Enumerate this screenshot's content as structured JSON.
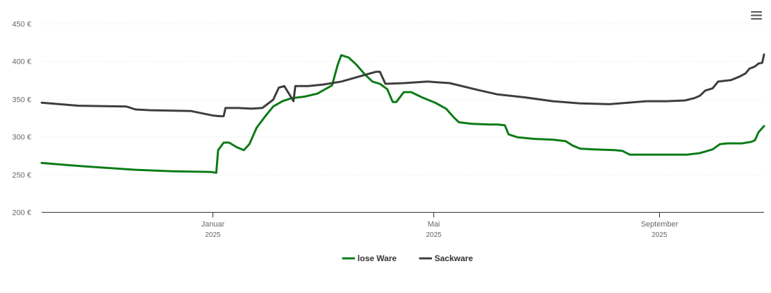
{
  "chart_data": {
    "type": "line",
    "title": "",
    "xlabel": "",
    "ylabel": "",
    "y_tick_labels": [
      "200 €",
      "250 €",
      "300 €",
      "350 €",
      "400 €",
      "450 €"
    ],
    "y_ticks": [
      200,
      250,
      300,
      350,
      400,
      450
    ],
    "ylim": [
      200,
      450
    ],
    "x_range": [
      "2024-09-30",
      "2025-10-28"
    ],
    "x_ticks": [
      {
        "date": "2025-01-01",
        "label": "Januar",
        "year": "2025"
      },
      {
        "date": "2025-05-01",
        "label": "Mai",
        "year": "2025"
      },
      {
        "date": "2025-09-01",
        "label": "September",
        "year": "2025"
      }
    ],
    "grid": true,
    "legend_position": "bottom-center",
    "series": [
      {
        "name": "lose Ware",
        "color": "#0a7b16",
        "points": [
          [
            "2024-09-30",
            265
          ],
          [
            "2024-10-15",
            262
          ],
          [
            "2024-11-01",
            259
          ],
          [
            "2024-11-20",
            256
          ],
          [
            "2024-12-10",
            254
          ],
          [
            "2024-12-31",
            253
          ],
          [
            "2025-01-03",
            252
          ],
          [
            "2025-01-04",
            282
          ],
          [
            "2025-01-07",
            292
          ],
          [
            "2025-01-10",
            292
          ],
          [
            "2025-01-14",
            286
          ],
          [
            "2025-01-18",
            282
          ],
          [
            "2025-01-21",
            290
          ],
          [
            "2025-01-25",
            312
          ],
          [
            "2025-01-30",
            328
          ],
          [
            "2025-02-03",
            340
          ],
          [
            "2025-02-08",
            347
          ],
          [
            "2025-02-13",
            351
          ],
          [
            "2025-02-20",
            353
          ],
          [
            "2025-02-27",
            357
          ],
          [
            "2025-03-07",
            368
          ],
          [
            "2025-03-10",
            395
          ],
          [
            "2025-03-12",
            408
          ],
          [
            "2025-03-16",
            405
          ],
          [
            "2025-03-20",
            396
          ],
          [
            "2025-03-25",
            382
          ],
          [
            "2025-03-29",
            373
          ],
          [
            "2025-04-02",
            370
          ],
          [
            "2025-04-06",
            363
          ],
          [
            "2025-04-09",
            346
          ],
          [
            "2025-04-11",
            346
          ],
          [
            "2025-04-15",
            359
          ],
          [
            "2025-04-19",
            359
          ],
          [
            "2025-04-25",
            352
          ],
          [
            "2025-05-02",
            345
          ],
          [
            "2025-05-08",
            337
          ],
          [
            "2025-05-12",
            326
          ],
          [
            "2025-05-15",
            319
          ],
          [
            "2025-05-22",
            317
          ],
          [
            "2025-06-01",
            316
          ],
          [
            "2025-06-05",
            316
          ],
          [
            "2025-06-09",
            315
          ],
          [
            "2025-06-11",
            303
          ],
          [
            "2025-06-16",
            299
          ],
          [
            "2025-06-25",
            297
          ],
          [
            "2025-07-05",
            296
          ],
          [
            "2025-07-12",
            294
          ],
          [
            "2025-07-16",
            288
          ],
          [
            "2025-07-20",
            284
          ],
          [
            "2025-07-28",
            283
          ],
          [
            "2025-08-08",
            282
          ],
          [
            "2025-08-12",
            281
          ],
          [
            "2025-08-16",
            276
          ],
          [
            "2025-08-28",
            276
          ],
          [
            "2025-09-01",
            276
          ],
          [
            "2025-09-12",
            276
          ],
          [
            "2025-09-16",
            276
          ],
          [
            "2025-09-23",
            278
          ],
          [
            "2025-09-30",
            283
          ],
          [
            "2025-10-04",
            290
          ],
          [
            "2025-10-08",
            291
          ],
          [
            "2025-10-16",
            291
          ],
          [
            "2025-10-21",
            293
          ],
          [
            "2025-10-23",
            295
          ],
          [
            "2025-10-25",
            306
          ],
          [
            "2025-10-28",
            314
          ],
          [
            "2025-10-28",
            314
          ]
        ]
      },
      {
        "name": "Sackware",
        "color": "#3d3d3d",
        "points": [
          [
            "2024-09-30",
            345
          ],
          [
            "2024-10-20",
            341
          ],
          [
            "2024-11-15",
            340
          ],
          [
            "2024-11-20",
            336
          ],
          [
            "2024-11-28",
            335
          ],
          [
            "2024-12-20",
            334
          ],
          [
            "2025-01-01",
            328
          ],
          [
            "2025-01-05",
            327
          ],
          [
            "2025-01-07",
            327
          ],
          [
            "2025-01-08",
            338
          ],
          [
            "2025-01-15",
            338
          ],
          [
            "2025-01-22",
            337
          ],
          [
            "2025-01-28",
            338
          ],
          [
            "2025-02-03",
            349
          ],
          [
            "2025-02-06",
            365
          ],
          [
            "2025-02-09",
            367
          ],
          [
            "2025-02-12",
            355
          ],
          [
            "2025-02-14",
            347
          ],
          [
            "2025-02-15",
            367
          ],
          [
            "2025-02-22",
            367
          ],
          [
            "2025-03-02",
            369
          ],
          [
            "2025-03-12",
            373
          ],
          [
            "2025-03-25",
            382
          ],
          [
            "2025-03-31",
            386
          ],
          [
            "2025-04-02",
            386
          ],
          [
            "2025-04-05",
            370
          ],
          [
            "2025-04-15",
            371
          ],
          [
            "2025-04-28",
            373
          ],
          [
            "2025-05-10",
            371
          ],
          [
            "2025-05-25",
            362
          ],
          [
            "2025-06-05",
            356
          ],
          [
            "2025-06-20",
            352
          ],
          [
            "2025-07-05",
            347
          ],
          [
            "2025-07-20",
            344
          ],
          [
            "2025-08-05",
            343
          ],
          [
            "2025-08-15",
            345
          ],
          [
            "2025-08-25",
            347
          ],
          [
            "2025-09-05",
            347
          ],
          [
            "2025-09-15",
            348
          ],
          [
            "2025-09-20",
            351
          ],
          [
            "2025-09-23",
            354
          ],
          [
            "2025-09-26",
            361
          ],
          [
            "2025-09-30",
            364
          ],
          [
            "2025-10-03",
            373
          ],
          [
            "2025-10-10",
            375
          ],
          [
            "2025-10-15",
            380
          ],
          [
            "2025-10-18",
            384
          ],
          [
            "2025-10-20",
            390
          ],
          [
            "2025-10-23",
            393
          ],
          [
            "2025-10-25",
            397
          ],
          [
            "2025-10-27",
            398
          ],
          [
            "2025-10-28",
            409
          ]
        ]
      }
    ]
  },
  "menu_icon": "hamburger-menu-icon"
}
